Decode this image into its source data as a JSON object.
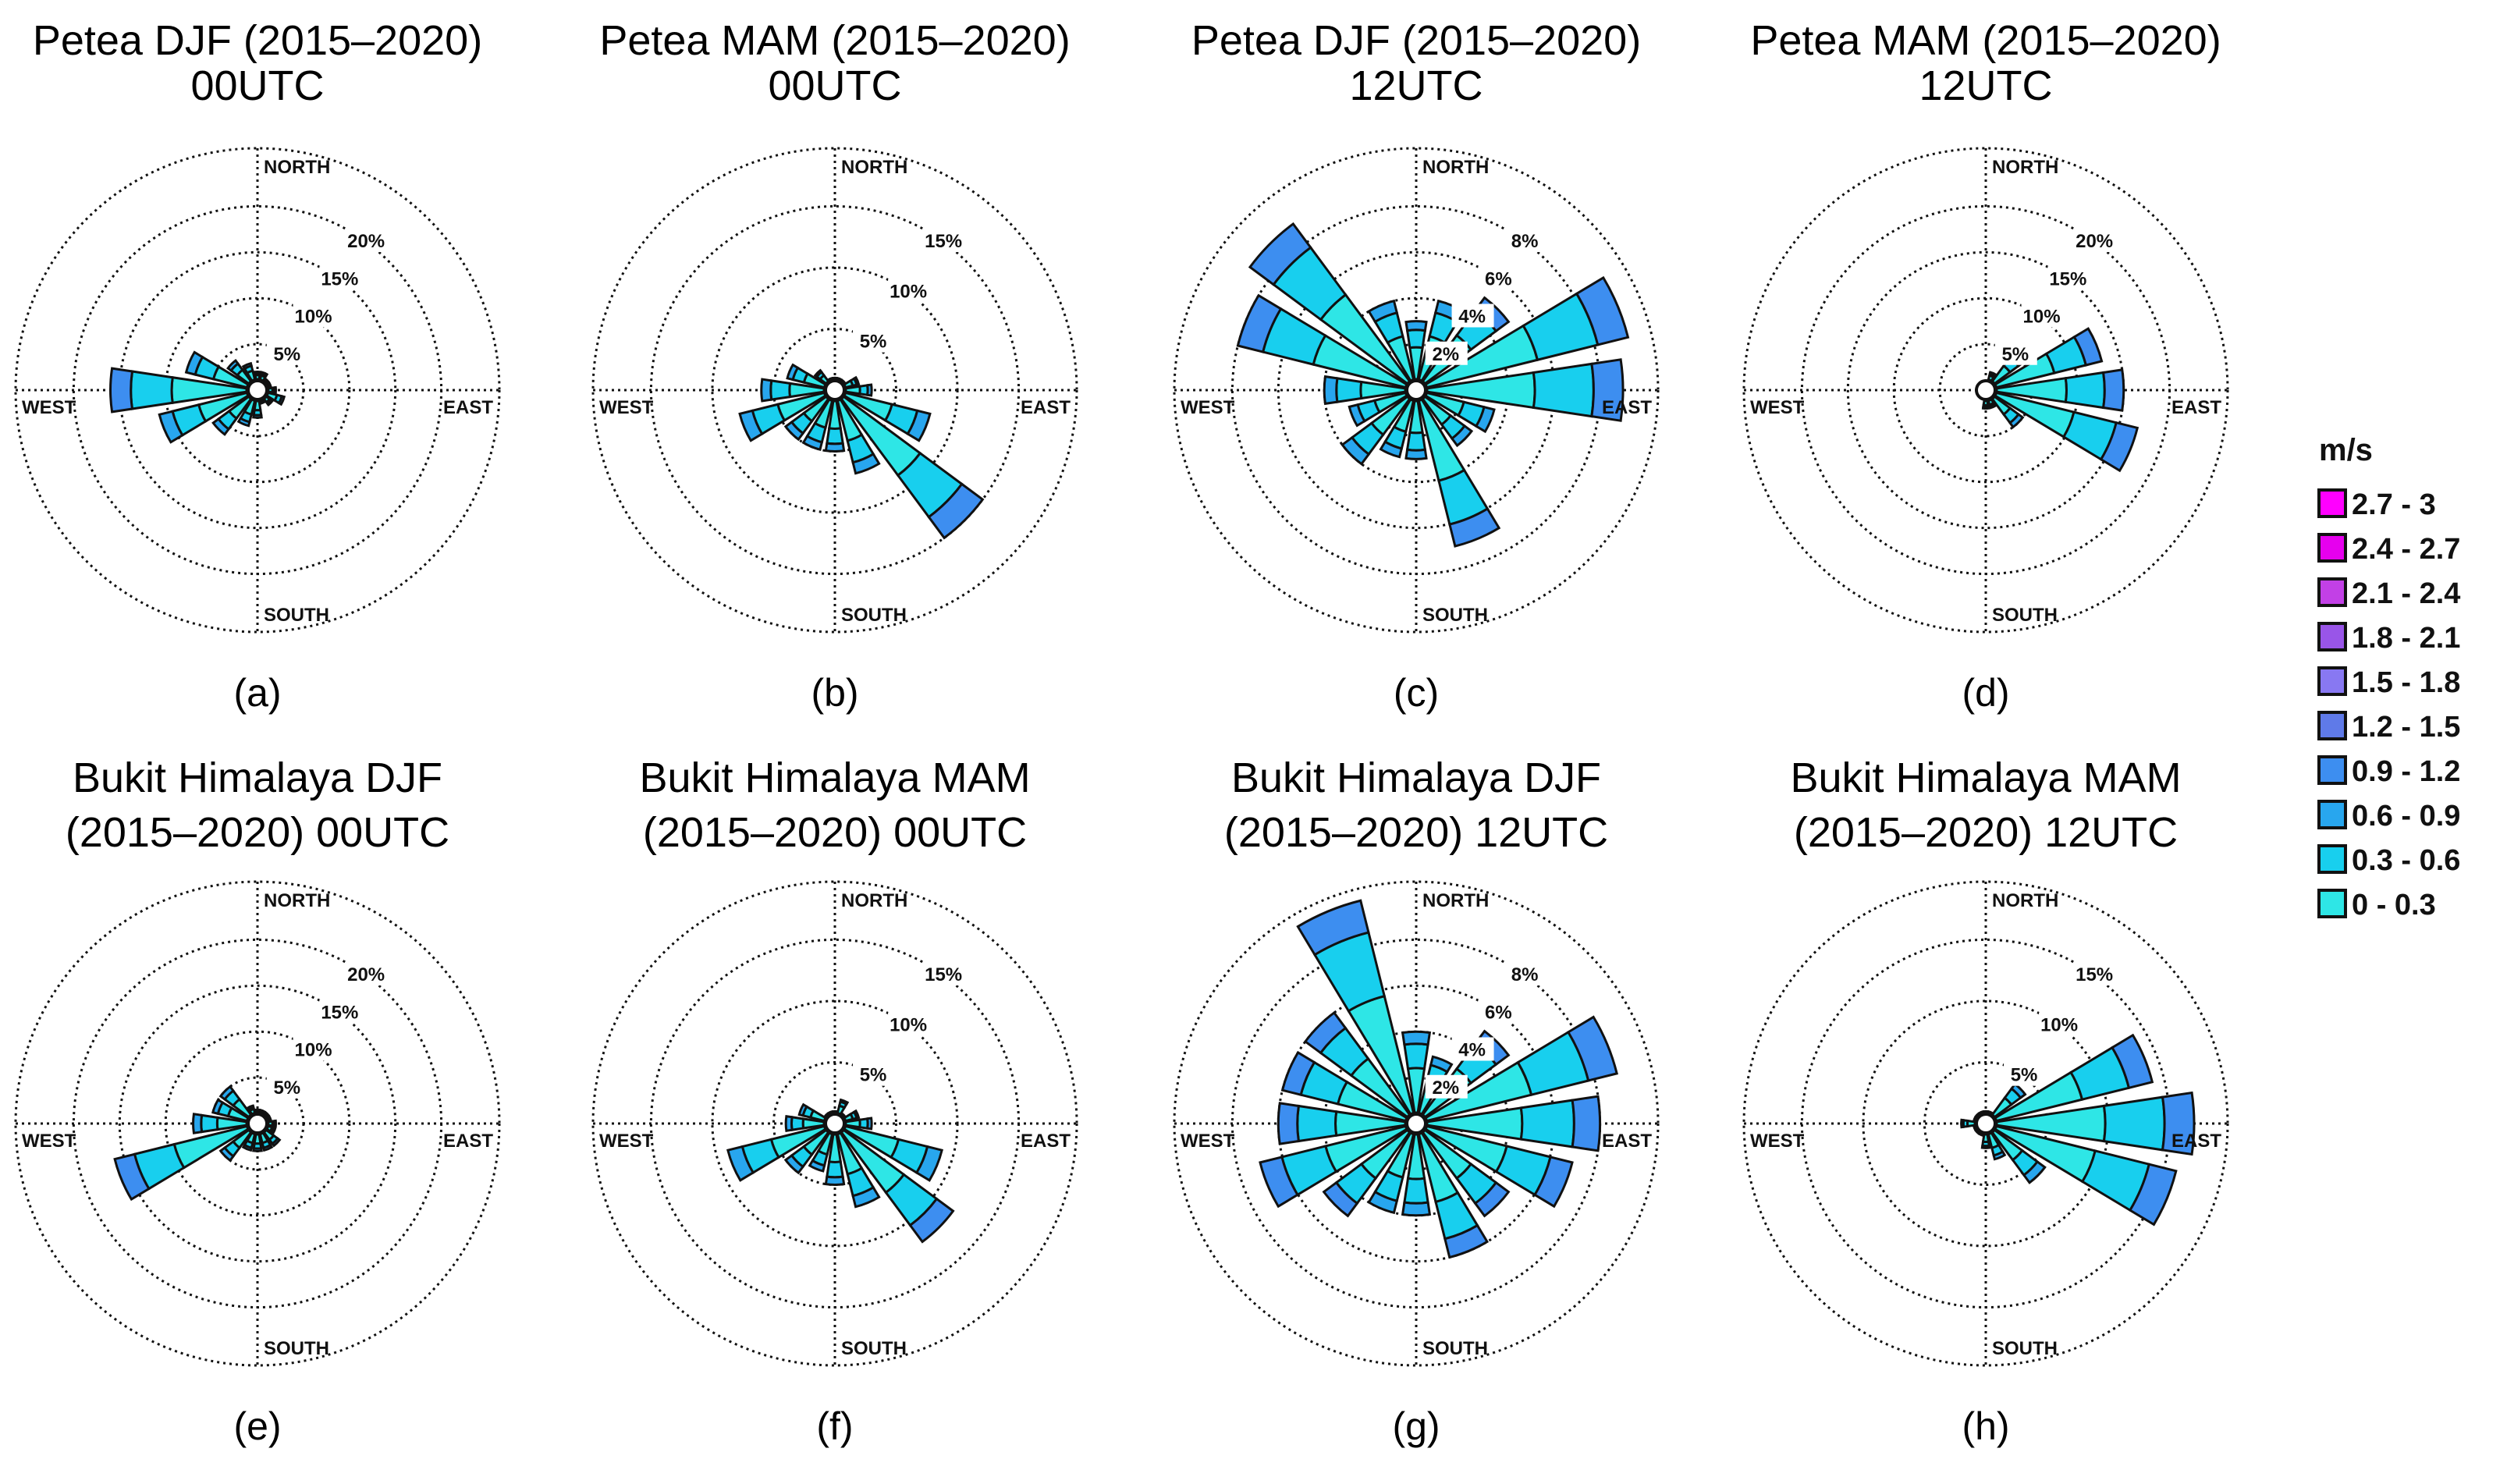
{
  "direction_labels": {
    "north": "NORTH",
    "south": "SOUTH",
    "east": "EAST",
    "west": "WEST"
  },
  "legend": {
    "title": "m/s",
    "bins": [
      {
        "label": "2.7 - 3",
        "color": "#ff00ff"
      },
      {
        "label": "2.4 - 2.7",
        "color": "#e600ee"
      },
      {
        "label": "2.1 - 2.4",
        "color": "#c240e6"
      },
      {
        "label": "1.8 - 2.1",
        "color": "#9955e8"
      },
      {
        "label": "1.5 - 1.8",
        "color": "#8878f2"
      },
      {
        "label": "1.2 - 1.5",
        "color": "#5f7ae8"
      },
      {
        "label": "0.9 - 1.2",
        "color": "#3d8ef0"
      },
      {
        "label": "0.6 - 0.9",
        "color": "#28a6ee"
      },
      {
        "label": "0.3 - 0.6",
        "color": "#18cfee"
      },
      {
        "label": "0 - 0.3",
        "color": "#2ee6e6"
      }
    ]
  },
  "chart_data": [
    {
      "type": "wind-rose",
      "panel_label": "(a)",
      "title": [
        "Petea DJF (2015–2020)",
        "00UTC"
      ],
      "rings": [
        5,
        10,
        15,
        20
      ],
      "ring_labels": [
        "5%",
        "10%",
        "15%",
        "20%"
      ],
      "directions_deg": [
        0,
        22.5,
        45,
        67.5,
        90,
        112.5,
        135,
        157.5,
        180,
        202.5,
        225,
        247.5,
        270,
        292.5,
        315,
        337.5
      ],
      "frequency_pct": [
        2,
        2,
        1.5,
        1.5,
        2,
        3,
        2,
        1.5,
        3,
        4,
        6,
        11,
        16,
        8,
        4,
        3
      ]
    },
    {
      "type": "wind-rose",
      "panel_label": "(b)",
      "title": [
        "Petea MAM (2015–2020)",
        "00UTC"
      ],
      "rings": [
        5,
        10,
        15
      ],
      "ring_labels": [
        "5%",
        "10%",
        "15%"
      ],
      "directions_deg": [
        0,
        22.5,
        45,
        67.5,
        90,
        112.5,
        135,
        157.5,
        180,
        202.5,
        225,
        247.5,
        270,
        292.5,
        315,
        337.5
      ],
      "frequency_pct": [
        1,
        1,
        1,
        2,
        3,
        8,
        15,
        7,
        5,
        5,
        5,
        8,
        6,
        4,
        2,
        1
      ]
    },
    {
      "type": "wind-rose",
      "panel_label": "(c)",
      "title": [
        "Petea DJF (2015–2020)",
        "12UTC"
      ],
      "rings": [
        2,
        4,
        6,
        8
      ],
      "ring_labels": [
        "2%",
        "4%",
        "6%",
        "8%"
      ],
      "directions_deg": [
        0,
        22.5,
        45,
        67.5,
        90,
        112.5,
        135,
        157.5,
        180,
        202.5,
        225,
        247.5,
        270,
        292.5,
        315,
        337.5
      ],
      "frequency_pct": [
        3,
        4,
        5,
        9.5,
        9,
        3.5,
        3,
        7,
        3,
        3,
        4,
        3,
        4,
        8,
        9,
        4
      ]
    },
    {
      "type": "wind-rose",
      "panel_label": "(d)",
      "title": [
        "Petea MAM (2015–2020)",
        "12UTC"
      ],
      "rings": [
        5,
        10,
        15,
        20
      ],
      "ring_labels": [
        "5%",
        "10%",
        "15%",
        "20%"
      ],
      "directions_deg": [
        0,
        22.5,
        45,
        67.5,
        90,
        112.5,
        135,
        157.5,
        180,
        202.5,
        225,
        247.5,
        270,
        292.5,
        315,
        337.5
      ],
      "frequency_pct": [
        1,
        2,
        5,
        13,
        15,
        17,
        5,
        2,
        2,
        1,
        1,
        1,
        1,
        1,
        1,
        1
      ]
    },
    {
      "type": "wind-rose",
      "panel_label": "(e)",
      "title": [
        "Bukit Himalaya DJF",
        "(2015–2020) 00UTC"
      ],
      "rings": [
        5,
        10,
        15,
        20
      ],
      "ring_labels": [
        "5%",
        "10%",
        "15%",
        "20%"
      ],
      "directions_deg": [
        0,
        22.5,
        45,
        67.5,
        90,
        112.5,
        135,
        157.5,
        180,
        202.5,
        225,
        247.5,
        270,
        292.5,
        315,
        337.5
      ],
      "frequency_pct": [
        1.5,
        1.5,
        1.5,
        1.5,
        2,
        2,
        3,
        3,
        3,
        3,
        5,
        16,
        7,
        5,
        5,
        2
      ]
    },
    {
      "type": "wind-rose",
      "panel_label": "(f)",
      "title": [
        "Bukit Himalaya MAM",
        "(2015–2020) 00UTC"
      ],
      "rings": [
        5,
        10,
        15
      ],
      "ring_labels": [
        "5%",
        "10%",
        "15%"
      ],
      "directions_deg": [
        0,
        22.5,
        45,
        67.5,
        90,
        112.5,
        135,
        157.5,
        180,
        202.5,
        225,
        247.5,
        270,
        292.5,
        315,
        337.5
      ],
      "frequency_pct": [
        1,
        2,
        1,
        2,
        3,
        9,
        12,
        7,
        5,
        4,
        5,
        9,
        4,
        3,
        1,
        1
      ]
    },
    {
      "type": "wind-rose",
      "panel_label": "(g)",
      "title": [
        "Bukit Himalaya DJF",
        "(2015–2020) 12UTC"
      ],
      "rings": [
        2,
        4,
        6,
        8
      ],
      "ring_labels": [
        "2%",
        "4%",
        "6%",
        "8%"
      ],
      "directions_deg": [
        0,
        22.5,
        45,
        67.5,
        90,
        112.5,
        135,
        157.5,
        180,
        202.5,
        225,
        247.5,
        270,
        292.5,
        315,
        337.5
      ],
      "frequency_pct": [
        4,
        3,
        5,
        9,
        8,
        7,
        5,
        6,
        4,
        4,
        5,
        7,
        6,
        6,
        6,
        10
      ]
    },
    {
      "type": "wind-rose",
      "panel_label": "(h)",
      "title": [
        "Bukit Himalaya MAM",
        "(2015–2020) 12UTC"
      ],
      "rings": [
        5,
        10,
        15
      ],
      "ring_labels": [
        "5%",
        "10%",
        "15%"
      ],
      "directions_deg": [
        0,
        22.5,
        45,
        67.5,
        90,
        112.5,
        135,
        157.5,
        180,
        202.5,
        225,
        247.5,
        270,
        292.5,
        315,
        337.5
      ],
      "frequency_pct": [
        1,
        1,
        4,
        14,
        17,
        16,
        6,
        3,
        2,
        1,
        1,
        1,
        2,
        1,
        1,
        1
      ]
    }
  ]
}
